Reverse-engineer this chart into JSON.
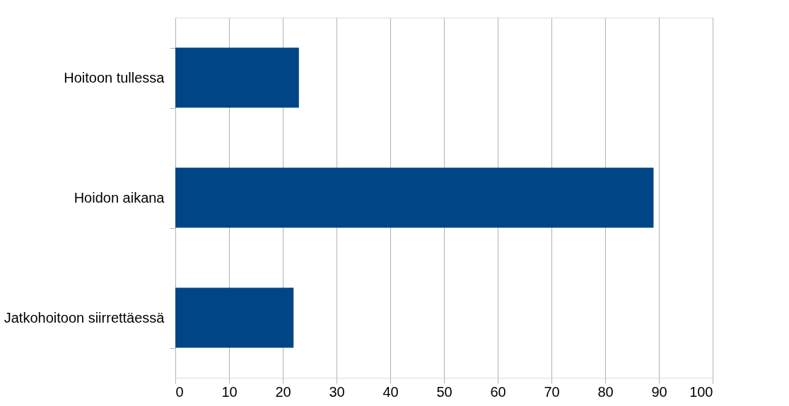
{
  "chart_data": {
    "type": "bar",
    "orientation": "horizontal",
    "categories": [
      "Hoitoon tullessa",
      "Hoidon aikana",
      "Jatkohoitoon siirrettäessä"
    ],
    "values": [
      23,
      89,
      22
    ],
    "color": "#004586",
    "xlim": [
      0,
      100
    ],
    "xticks": [
      0,
      10,
      20,
      30,
      40,
      50,
      60,
      70,
      80,
      90,
      100
    ],
    "grid": "x"
  }
}
